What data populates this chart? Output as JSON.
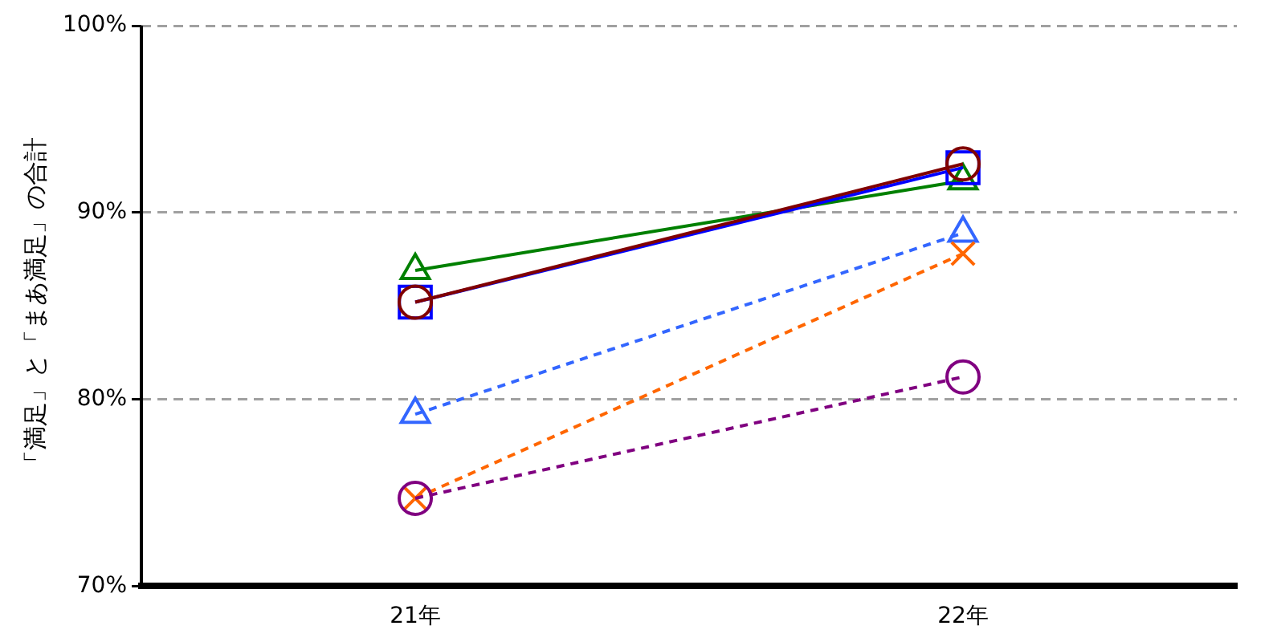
{
  "chart_data": {
    "type": "line",
    "ylabel": "「満足」と「まあ満足」の合計",
    "categories": [
      "21年",
      "22年"
    ],
    "ylim": [
      70,
      100
    ],
    "yticks": [
      {
        "value": 70,
        "label": "70%"
      },
      {
        "value": 80,
        "label": "80%"
      },
      {
        "value": 90,
        "label": "90%"
      },
      {
        "value": 100,
        "label": "100%"
      }
    ],
    "grid": "y",
    "legend": false,
    "series": [
      {
        "color": "#008000",
        "values": [
          86.9,
          91.7
        ],
        "marker": "triangle",
        "line_style": "solid"
      },
      {
        "color": "#0000ff",
        "values": [
          85.2,
          92.4
        ],
        "marker": "square",
        "line_style": "solid"
      },
      {
        "color": "#800000",
        "values": [
          85.2,
          92.6
        ],
        "marker": "circle",
        "line_style": "solid"
      },
      {
        "color": "#3366ff",
        "values": [
          79.2,
          88.9
        ],
        "marker": "triangle",
        "line_style": "dashed"
      },
      {
        "color": "#ff6600",
        "values": [
          74.7,
          87.8
        ],
        "marker": "cross",
        "line_style": "dashed"
      },
      {
        "color": "#800080",
        "values": [
          74.7,
          81.2
        ],
        "marker": "circle",
        "line_style": "dashed"
      }
    ]
  }
}
